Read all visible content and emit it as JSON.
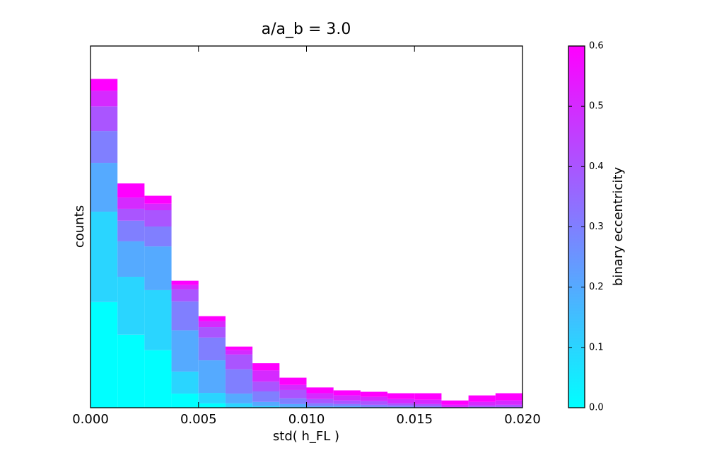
{
  "chart_data": {
    "type": "stacked_histogram",
    "title": "a/a_b = 3.0",
    "xlabel": "std( h_FL )",
    "ylabel": "counts",
    "bins": [
      0,
      0.00125,
      0.0025,
      0.00375,
      0.005,
      0.00625,
      0.0075,
      0.00875,
      0.01,
      0.01125,
      0.0125,
      0.01375,
      0.015,
      0.01625,
      0.0175,
      0.01875,
      0.02
    ],
    "series": [
      {
        "color": "#00ffff",
        "values": [
          29.2,
          20.2,
          15.9,
          3.9,
          1.2,
          0,
          0,
          0,
          0,
          0,
          0,
          0,
          0,
          0,
          0,
          0
        ]
      },
      {
        "color": "#2ad5ff",
        "values": [
          25.0,
          16.0,
          16.6,
          6.1,
          2.9,
          1.2,
          0.4,
          0.2,
          0,
          0,
          0,
          0,
          0,
          0,
          0,
          0
        ]
      },
      {
        "color": "#55aaff",
        "values": [
          13.5,
          9.8,
          12.1,
          11.4,
          9.0,
          2.7,
          1.2,
          0.8,
          0.4,
          0.4,
          0.2,
          0.2,
          0,
          0,
          0,
          0
        ]
      },
      {
        "color": "#807fff",
        "values": [
          8.8,
          5.7,
          5.5,
          8.0,
          6.3,
          6.7,
          2.9,
          1.6,
          0.8,
          0.6,
          0.6,
          0.4,
          0.4,
          0,
          0.2,
          0.2
        ]
      },
      {
        "color": "#aa55ff",
        "values": [
          6.8,
          3.3,
          4.5,
          3.3,
          2.9,
          4.1,
          2.7,
          2.3,
          1.2,
          1.0,
          1.0,
          0.6,
          0.6,
          0.2,
          0.4,
          0.6
        ]
      },
      {
        "color": "#d52aff",
        "values": [
          4.3,
          3.1,
          1.8,
          1.2,
          1.6,
          1.2,
          3.1,
          1.4,
          1.6,
          1.4,
          1.2,
          1.2,
          1.2,
          0.6,
          1.0,
          1.2
        ]
      },
      {
        "color": "#ff00ff",
        "values": [
          3.3,
          3.9,
          2.2,
          1.2,
          1.4,
          1.0,
          2.0,
          2.0,
          1.6,
          1.4,
          1.4,
          1.6,
          1.8,
          1.2,
          1.8,
          2.0
        ]
      }
    ],
    "xlim": [
      0,
      0.02
    ],
    "xticks": [
      {
        "value": 0,
        "label": "0.000"
      },
      {
        "value": 0.005,
        "label": "0.005"
      },
      {
        "value": 0.01,
        "label": "0.010"
      },
      {
        "value": 0.015,
        "label": "0.015"
      },
      {
        "value": 0.02,
        "label": "0.020"
      }
    ],
    "ylim": [
      0,
      100
    ],
    "colorbar": {
      "label": "binary eccentricity",
      "colors": [
        "#00ffff",
        "#ff00ff"
      ],
      "lim": [
        0,
        0.6
      ],
      "ticks": [
        {
          "value": 0,
          "label": "0.0"
        },
        {
          "value": 0.1,
          "label": "0.1"
        },
        {
          "value": 0.2,
          "label": "0.2"
        },
        {
          "value": 0.3,
          "label": "0.3"
        },
        {
          "value": 0.4,
          "label": "0.4"
        },
        {
          "value": 0.5,
          "label": "0.5"
        },
        {
          "value": 0.6,
          "label": "0.6"
        }
      ]
    }
  }
}
